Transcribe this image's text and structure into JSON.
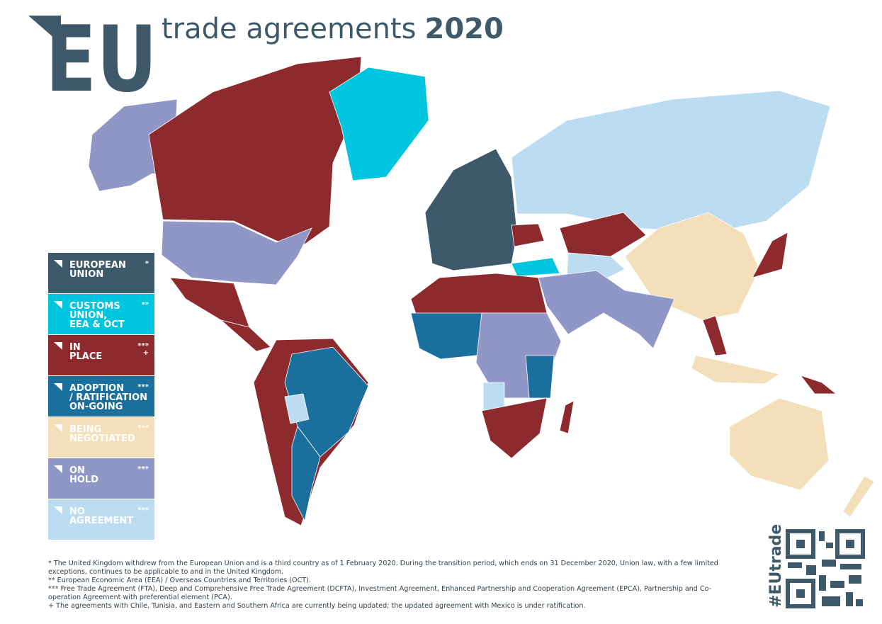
{
  "header": {
    "logo": "EU",
    "title": "trade agreements",
    "year": "2020"
  },
  "legend": {
    "items": [
      {
        "lines": [
          "EUROPEAN",
          "UNION"
        ],
        "note": "*",
        "color": "#3e5a6a",
        "text_color": "#ffffff"
      },
      {
        "lines": [
          "CUSTOMS",
          "UNION,",
          "EEA & OCT"
        ],
        "note": "**",
        "color": "#00c5de",
        "text_color": "#3e5a6a"
      },
      {
        "lines": [
          "IN",
          "PLACE"
        ],
        "note": "***",
        "note2": "+",
        "color": "#8c2a2d",
        "text_color": "#ffffff"
      },
      {
        "lines": [
          "ADOPTION",
          "/ RATIFICATION",
          "ON-GOING"
        ],
        "note": "***",
        "color": "#1a6f9c",
        "text_color": "#ffffff"
      },
      {
        "lines": [
          "BEING",
          "NEGOTIATED"
        ],
        "note": "***",
        "color": "#f3dfb9",
        "text_color": "#ffffff"
      },
      {
        "lines": [
          "ON",
          "HOLD"
        ],
        "note": "***",
        "color": "#9097c6",
        "text_color": "#ffffff"
      },
      {
        "lines": [
          "NO",
          "AGREEMENT"
        ],
        "note": "***",
        "color": "#bcdcf1",
        "text_color": "#ffffff"
      }
    ]
  },
  "footnotes": [
    "* The United Kingdom withdrew from the European Union and is a third country as of 1 February 2020. During the transition period, which ends on 31 December 2020, Union law, with a few limited exceptions, continues to be applicable to and in the United Kingdom.",
    "** European Economic Area (EEA) / Overseas Countries and Territories (OCT).",
    "*** Free Trade Agreement (FTA), Deep and Comprehensive Free Trade Agreement (DCFTA), Investment Agreement, Enhanced Partnership and Cooperation Agreement (EPCA), Partnership and Co-operation Agreement with preferential element (PCA).",
    "+ The agreements with Chile, Tunisia, and Eastern and Southern Africa are currently being updated; the updated agreement with Mexico is under ratification."
  ],
  "hashtag": "#EUtrade"
}
